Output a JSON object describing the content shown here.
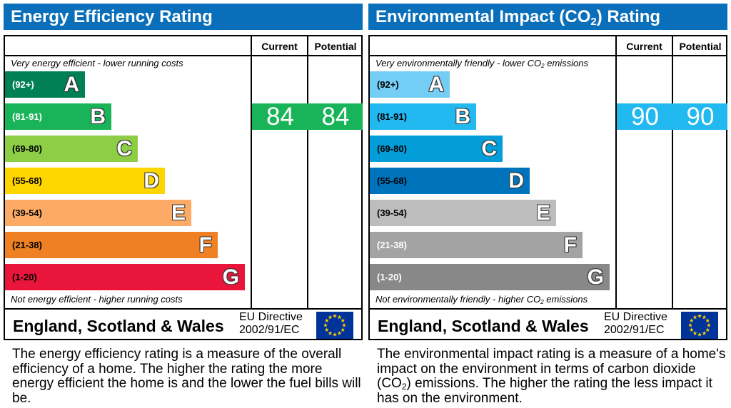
{
  "panels": [
    {
      "id": "energy",
      "title": [
        "Energy Efficiency Rating"
      ],
      "title_color": "#0a6fba",
      "columns": [
        "Current",
        "Potential"
      ],
      "top_note": [
        {
          "t": "Very energy efficient - lower running costs"
        }
      ],
      "bottom_note": [
        {
          "t": "Not energy efficient - higher running costs"
        }
      ],
      "bands": [
        {
          "range": "(92+)",
          "letter": "A",
          "color": "#008054",
          "text_color": "#ffffff"
        },
        {
          "range": "(81-91)",
          "letter": "B",
          "color": "#19b459",
          "text_color": "#ffffff"
        },
        {
          "range": "(69-80)",
          "letter": "C",
          "color": "#8dce46",
          "text_color": "#000000"
        },
        {
          "range": "(55-68)",
          "letter": "D",
          "color": "#ffd500",
          "text_color": "#000000"
        },
        {
          "range": "(39-54)",
          "letter": "E",
          "color": "#fcaa65",
          "text_color": "#000000"
        },
        {
          "range": "(21-38)",
          "letter": "F",
          "color": "#ef8023",
          "text_color": "#000000"
        },
        {
          "range": "(1-20)",
          "letter": "G",
          "color": "#e9153b",
          "text_color": "#000000"
        }
      ],
      "current": {
        "value": "84",
        "band": "B",
        "color": "#19b459"
      },
      "potential": {
        "value": "84",
        "band": "B",
        "color": "#19b459"
      },
      "region": "England, Scotland & Wales",
      "directive": [
        "EU Directive",
        "2002/91/EC"
      ],
      "flag_icon": "eu-flag-icon",
      "description": [
        {
          "t": "The energy efficiency rating is a measure of the overall efficiency of a home. The higher the rating the more energy efficient the home is and the lower the fuel bills will be."
        }
      ]
    },
    {
      "id": "environmental",
      "title": [
        "Environmental Impact (CO",
        "2",
        ") Rating"
      ],
      "title_color": "#0a6fba",
      "columns": [
        "Current",
        "Potential"
      ],
      "top_note": [
        {
          "t": "Very environmentally friendly - lower CO"
        },
        {
          "t": "2",
          "sub": true
        },
        {
          "t": " emissions"
        }
      ],
      "bottom_note": [
        {
          "t": "Not environmentally friendly - higher CO"
        },
        {
          "t": "2",
          "sub": true
        },
        {
          "t": " emissions"
        }
      ],
      "bands": [
        {
          "range": "(92+)",
          "letter": "A",
          "color": "#74cdf4",
          "text_color": "#000000"
        },
        {
          "range": "(81-91)",
          "letter": "B",
          "color": "#22b8f0",
          "text_color": "#000000"
        },
        {
          "range": "(69-80)",
          "letter": "C",
          "color": "#039ed9",
          "text_color": "#000000"
        },
        {
          "range": "(55-68)",
          "letter": "D",
          "color": "#0073bd",
          "text_color": "#000000"
        },
        {
          "range": "(39-54)",
          "letter": "E",
          "color": "#bdbdbd",
          "text_color": "#000000"
        },
        {
          "range": "(21-38)",
          "letter": "F",
          "color": "#a3a3a3",
          "text_color": "#ffffff"
        },
        {
          "range": "(1-20)",
          "letter": "G",
          "color": "#888888",
          "text_color": "#ffffff"
        }
      ],
      "current": {
        "value": "90",
        "band": "B",
        "color": "#22b8f0"
      },
      "potential": {
        "value": "90",
        "band": "B",
        "color": "#22b8f0"
      },
      "region": "England, Scotland & Wales",
      "directive": [
        "EU Directive",
        "2002/91/EC"
      ],
      "flag_icon": "eu-flag-icon",
      "description": [
        {
          "t": "The environmental impact rating is a measure of a home's impact on the environment in terms of carbon dioxide (CO"
        },
        {
          "t": "2",
          "sub": true
        },
        {
          "t": ") emissions. The higher the rating the less impact it has on the environment."
        }
      ]
    }
  ],
  "chart_data": [
    {
      "type": "table",
      "title": "Energy Efficiency Rating",
      "bands": [
        "A (92+)",
        "B (81-91)",
        "C (69-80)",
        "D (55-68)",
        "E (39-54)",
        "F (21-38)",
        "G (1-20)"
      ],
      "series": [
        {
          "name": "Current",
          "values": [
            84
          ]
        },
        {
          "name": "Potential",
          "values": [
            84
          ]
        }
      ]
    },
    {
      "type": "table",
      "title": "Environmental Impact (CO2) Rating",
      "bands": [
        "A (92+)",
        "B (81-91)",
        "C (69-80)",
        "D (55-68)",
        "E (39-54)",
        "F (21-38)",
        "G (1-20)"
      ],
      "series": [
        {
          "name": "Current",
          "values": [
            90
          ]
        },
        {
          "name": "Potential",
          "values": [
            90
          ]
        }
      ]
    }
  ]
}
